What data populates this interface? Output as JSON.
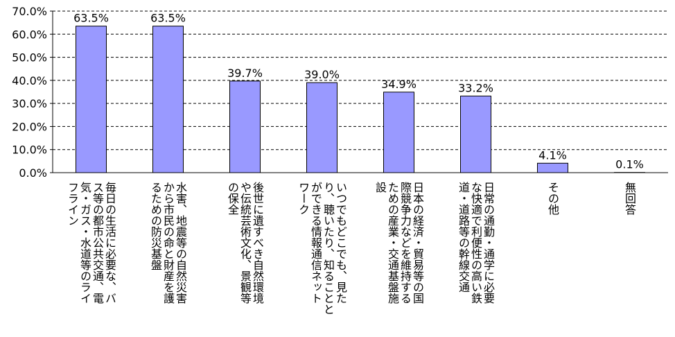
{
  "chart_data": {
    "type": "bar",
    "title": "",
    "xlabel": "",
    "ylabel": "",
    "ylim": [
      0,
      70
    ],
    "y_ticks": [
      "0.0%",
      "10.0%",
      "20.0%",
      "30.0%",
      "40.0%",
      "50.0%",
      "60.0%",
      "70.0%"
    ],
    "grid": "horizontal-dashed",
    "colors": {
      "bar_fill": "#9999ff",
      "bar_stroke": "#000000"
    },
    "categories": [
      [
        "毎日の生活に必要な、バ",
        "ス等の都市公共交通、電",
        "気・ガス・水道等のライ",
        "フライン"
      ],
      [
        "水害、地震等の自然災害",
        "から市民の命と財産を護",
        "るための防災基盤"
      ],
      [
        "後世に遺すべき自然環境",
        "や伝統芸術文化、景観等",
        "の保全"
      ],
      [
        "いつでもどこでも、見た",
        "り、聴いたり、知ることと",
        "ができる情報通信ネット",
        "ワーク"
      ],
      [
        "日本の経済・貿易等の国",
        "際競争力などを維持する",
        "ための産業・交通基盤施",
        "設"
      ],
      [
        "日常の通勤・通学に必要",
        "な快適で利便性の高い鉄",
        "道・道路等の幹線交通"
      ],
      [
        "その他"
      ],
      [
        "無回答"
      ]
    ],
    "values": [
      63.5,
      63.5,
      39.7,
      39.0,
      34.9,
      33.2,
      4.1,
      0.1
    ],
    "data_labels": [
      "63.5%",
      "63.5%",
      "39.7%",
      "39.0%",
      "34.9%",
      "33.2%",
      "4.1%",
      "0.1%"
    ]
  }
}
